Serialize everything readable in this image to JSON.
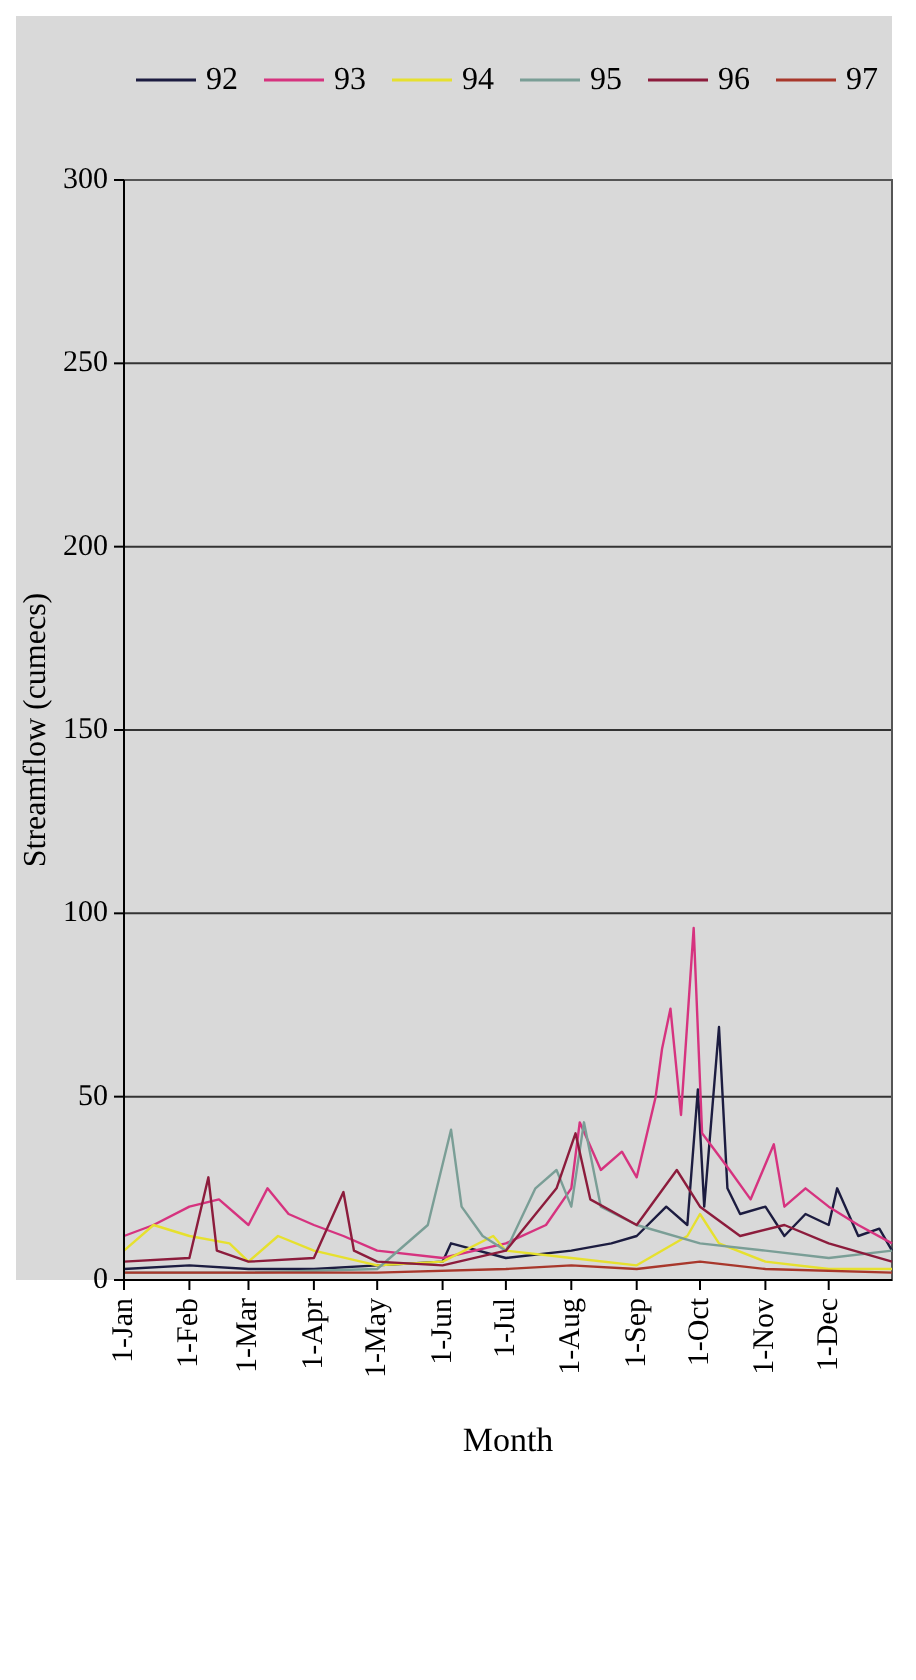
{
  "chart_data": {
    "type": "line",
    "xlabel": "Month",
    "ylabel": "Streamflow (cumecs)",
    "xlim": [
      "--01-01",
      "--12-31"
    ],
    "xticks": [
      {
        "value": "--01-01",
        "label": "1-Jan"
      },
      {
        "value": "--02-01",
        "label": "1-Feb"
      },
      {
        "value": "--03-01",
        "label": "1-Mar"
      },
      {
        "value": "--04-01",
        "label": "1-Apr"
      },
      {
        "value": "--05-01",
        "label": "1-May"
      },
      {
        "value": "--06-01",
        "label": "1-Jun"
      },
      {
        "value": "--07-01",
        "label": "1-Jul"
      },
      {
        "value": "--08-01",
        "label": "1-Aug"
      },
      {
        "value": "--09-01",
        "label": "1-Sep"
      },
      {
        "value": "--10-01",
        "label": "1-Oct"
      },
      {
        "value": "--11-01",
        "label": "1-Nov"
      },
      {
        "value": "--12-01",
        "label": "1-Dec"
      }
    ],
    "ylim": [
      0,
      300
    ],
    "yticks": [
      0,
      50,
      100,
      150,
      200,
      250,
      300
    ],
    "grid": "y",
    "legend": "top",
    "marker": "none",
    "line_style": "solid",
    "series": [
      {
        "name": "92",
        "color": "#1c1c40",
        "x": [
          "--01-01",
          "--02-01",
          "--03-01",
          "--04-01",
          "--05-01",
          "--06-01",
          "--06-05",
          "--07-01",
          "--08-01",
          "--08-20",
          "--09-01",
          "--09-15",
          "--09-25",
          "--09-30",
          "--10-03",
          "--10-10",
          "--10-14",
          "--10-20",
          "--11-01",
          "--11-10",
          "--11-20",
          "--12-01",
          "--12-05",
          "--12-15",
          "--12-25",
          "--12-31"
        ],
        "values": [
          3,
          4,
          3,
          3,
          4,
          5,
          10,
          6,
          8,
          10,
          12,
          20,
          15,
          52,
          20,
          69,
          25,
          18,
          20,
          12,
          18,
          15,
          25,
          12,
          14,
          8
        ]
      },
      {
        "name": "93",
        "color": "#d6337f",
        "x": [
          "--01-01",
          "--01-15",
          "--02-01",
          "--02-15",
          "--03-01",
          "--03-10",
          "--03-20",
          "--04-01",
          "--04-15",
          "--05-01",
          "--06-01",
          "--07-01",
          "--07-20",
          "--08-01",
          "--08-05",
          "--08-15",
          "--08-25",
          "--09-01",
          "--09-10",
          "--09-13",
          "--09-17",
          "--09-22",
          "--09-28",
          "--10-02",
          "--10-15",
          "--10-25",
          "--11-05",
          "--11-10",
          "--11-20",
          "--12-01",
          "--12-15",
          "--12-31"
        ],
        "values": [
          12,
          15,
          20,
          22,
          15,
          25,
          18,
          15,
          12,
          8,
          6,
          10,
          15,
          25,
          43,
          30,
          35,
          28,
          50,
          63,
          74,
          45,
          96,
          40,
          30,
          22,
          37,
          20,
          25,
          20,
          15,
          10
        ]
      },
      {
        "name": "94",
        "color": "#e6e02e",
        "x": [
          "--01-01",
          "--01-15",
          "--02-01",
          "--02-20",
          "--03-01",
          "--03-15",
          "--04-01",
          "--05-01",
          "--06-01",
          "--06-25",
          "--07-01",
          "--08-01",
          "--09-01",
          "--09-25",
          "--10-01",
          "--10-10",
          "--11-01",
          "--12-01",
          "--12-31"
        ],
        "values": [
          8,
          15,
          12,
          10,
          5,
          12,
          8,
          4,
          5,
          12,
          8,
          6,
          4,
          12,
          18,
          10,
          5,
          3,
          3
        ]
      },
      {
        "name": "95",
        "color": "#7a9e96",
        "x": [
          "--01-01",
          "--03-01",
          "--05-01",
          "--05-25",
          "--06-05",
          "--06-10",
          "--06-20",
          "--07-01",
          "--07-15",
          "--07-25",
          "--08-01",
          "--08-07",
          "--08-15",
          "--09-01",
          "--10-01",
          "--11-01",
          "--12-01",
          "--12-31"
        ],
        "values": [
          2,
          2,
          3,
          15,
          41,
          20,
          12,
          8,
          25,
          30,
          20,
          43,
          20,
          15,
          10,
          8,
          6,
          8
        ]
      },
      {
        "name": "96",
        "color": "#8c1c3c",
        "x": [
          "--01-01",
          "--02-01",
          "--02-10",
          "--02-14",
          "--03-01",
          "--04-01",
          "--04-15",
          "--04-20",
          "--05-01",
          "--06-01",
          "--07-01",
          "--07-25",
          "--08-03",
          "--08-10",
          "--09-01",
          "--09-20",
          "--10-01",
          "--10-20",
          "--11-10",
          "--12-01",
          "--12-31"
        ],
        "values": [
          5,
          6,
          28,
          8,
          5,
          6,
          24,
          8,
          5,
          4,
          8,
          25,
          40,
          22,
          15,
          30,
          20,
          12,
          15,
          10,
          5
        ]
      },
      {
        "name": "97",
        "color": "#a8372b",
        "x": [
          "--01-01",
          "--03-01",
          "--05-01",
          "--07-01",
          "--08-01",
          "--09-01",
          "--10-01",
          "--11-01",
          "--12-31"
        ],
        "values": [
          2,
          2,
          2,
          3,
          4,
          3,
          5,
          3,
          2
        ]
      }
    ]
  }
}
